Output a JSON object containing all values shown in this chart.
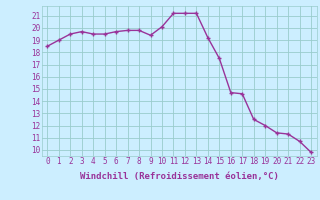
{
  "x": [
    0,
    1,
    2,
    3,
    4,
    5,
    6,
    7,
    8,
    9,
    10,
    11,
    12,
    13,
    14,
    15,
    16,
    17,
    18,
    19,
    20,
    21,
    22,
    23
  ],
  "y": [
    18.5,
    19.0,
    19.5,
    19.7,
    19.5,
    19.5,
    19.7,
    19.8,
    19.8,
    19.4,
    20.1,
    21.2,
    21.2,
    21.2,
    19.2,
    17.5,
    14.7,
    14.6,
    12.5,
    12.0,
    11.4,
    11.3,
    10.7,
    9.8
  ],
  "line_color": "#993399",
  "marker": "+",
  "marker_size": 3.5,
  "line_width": 1.0,
  "xlabel": "Windchill (Refroidissement éolien,°C)",
  "xlabel_fontsize": 6.5,
  "ylabel_ticks": [
    10,
    11,
    12,
    13,
    14,
    15,
    16,
    17,
    18,
    19,
    20,
    21
  ],
  "xtick_labels": [
    "0",
    "1",
    "2",
    "3",
    "4",
    "5",
    "6",
    "7",
    "8",
    "9",
    "10",
    "11",
    "12",
    "13",
    "14",
    "15",
    "16",
    "17",
    "18",
    "19",
    "20",
    "21",
    "22",
    "23"
  ],
  "ylim": [
    9.5,
    21.8
  ],
  "xlim": [
    -0.5,
    23.5
  ],
  "bg_color": "#cceeff",
  "grid_color": "#99cccc",
  "tick_fontsize": 5.5,
  "xlabel_fontweight": "bold"
}
